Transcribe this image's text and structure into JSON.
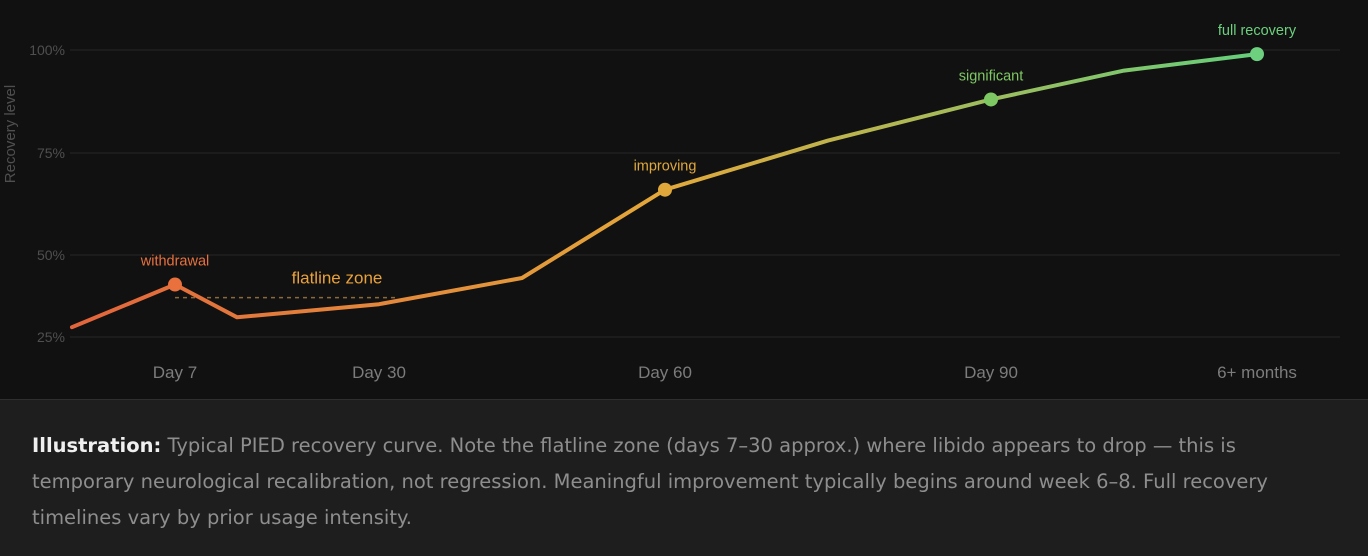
{
  "chart_data": {
    "type": "line",
    "ylabel": "Recovery level",
    "yticks": [
      "25%",
      "50%",
      "75%",
      "100%"
    ],
    "xticks": [
      "Day 7",
      "Day 30",
      "Day 60",
      "Day 90",
      "6+ months"
    ],
    "ylim": [
      25,
      100
    ],
    "grid": true,
    "series": [
      {
        "x": [
          0,
          7,
          14,
          30,
          45,
          60,
          75,
          90,
          105,
          120
        ],
        "values": [
          28,
          41,
          31,
          35,
          43,
          66,
          78,
          88,
          95,
          99
        ]
      }
    ],
    "milestones": [
      {
        "label": "withdrawal",
        "x": 7,
        "y": 41,
        "color": "#e8713d"
      },
      {
        "label": "improving",
        "x": 60,
        "y": 66,
        "color": "#e0a83a"
      },
      {
        "label": "significant",
        "x": 90,
        "y": 88,
        "color": "#7ec863"
      },
      {
        "label": "full recovery",
        "x": 120,
        "y": 99,
        "color": "#6cd07e"
      }
    ],
    "annotation": {
      "label": "flatline zone",
      "x_from": 7,
      "x_to": 30,
      "y": 37,
      "color": "#e9a13b"
    },
    "gradient_colors": [
      "#e3643c",
      "#e3a83a",
      "#63cf7b"
    ]
  },
  "caption": {
    "lead": "Illustration:",
    "text": "Typical PIED recovery curve. Note the flatline zone (days 7–30 approx.) where libido appears to drop — this is temporary neurological recalibration, not regression. Meaningful improvement typically begins around week 6–8. Full recovery timelines vary by prior usage intensity."
  }
}
